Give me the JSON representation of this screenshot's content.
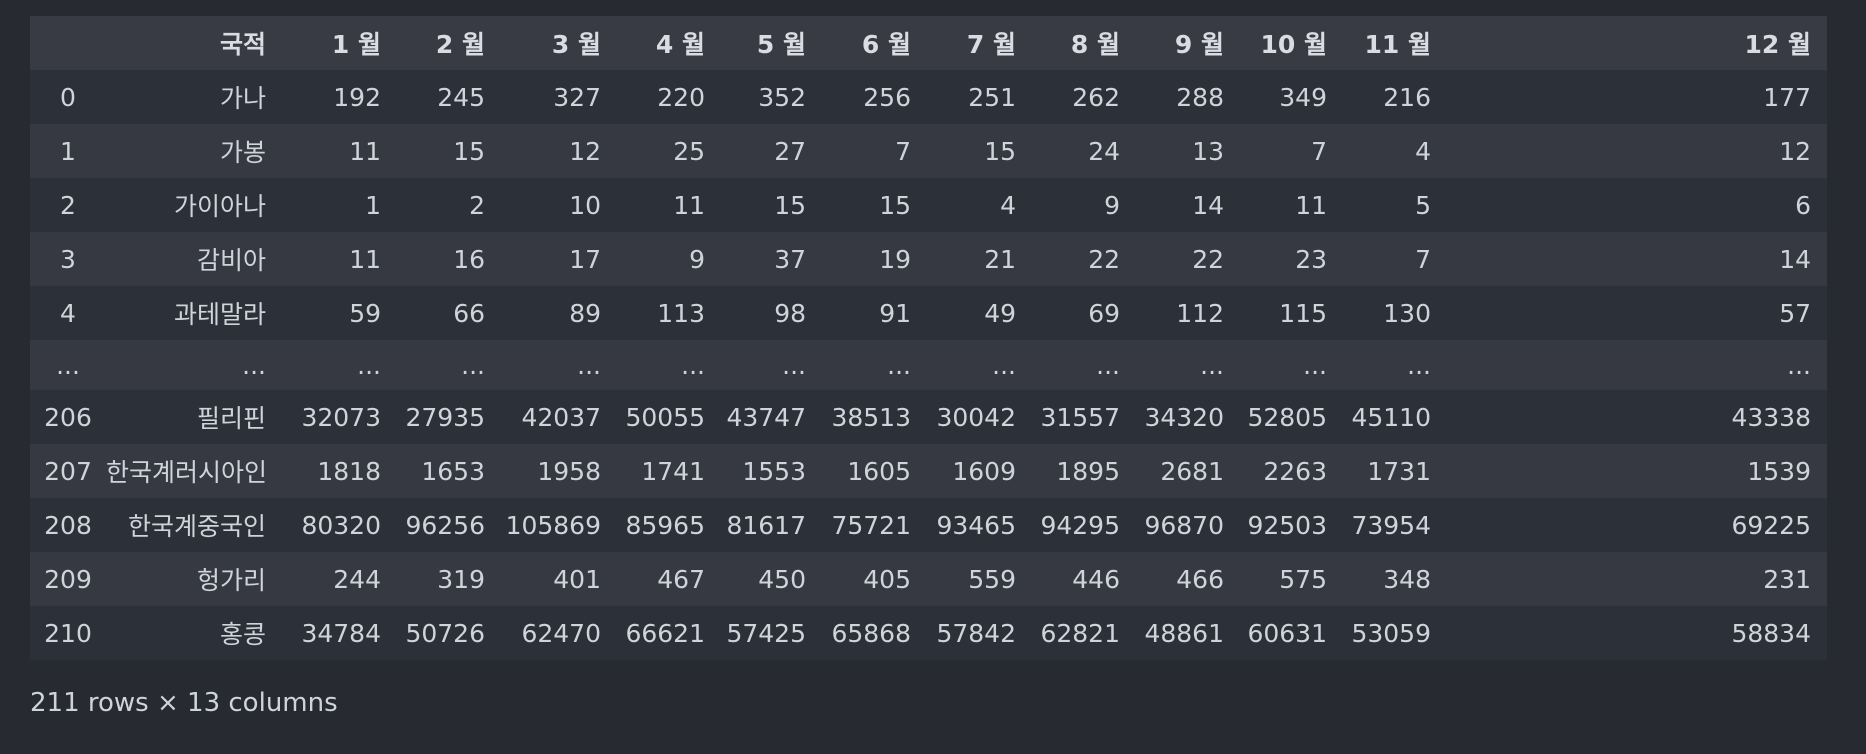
{
  "table": {
    "columns": [
      "",
      "국적",
      "1 월",
      "2 월",
      "3 월",
      "4 월",
      "5 월",
      "6 월",
      "7 월",
      "8 월",
      "9 월",
      "10 월",
      "11 월",
      "12 월"
    ],
    "rows": [
      {
        "index": "0",
        "cells": [
          "가나",
          "192",
          "245",
          "327",
          "220",
          "352",
          "256",
          "251",
          "262",
          "288",
          "349",
          "216",
          "177"
        ]
      },
      {
        "index": "1",
        "cells": [
          "가봉",
          "11",
          "15",
          "12",
          "25",
          "27",
          "7",
          "15",
          "24",
          "13",
          "7",
          "4",
          "12"
        ]
      },
      {
        "index": "2",
        "cells": [
          "가이아나",
          "1",
          "2",
          "10",
          "11",
          "15",
          "15",
          "4",
          "9",
          "14",
          "11",
          "5",
          "6"
        ]
      },
      {
        "index": "3",
        "cells": [
          "감비아",
          "11",
          "16",
          "17",
          "9",
          "37",
          "19",
          "21",
          "22",
          "22",
          "23",
          "7",
          "14"
        ]
      },
      {
        "index": "4",
        "cells": [
          "과테말라",
          "59",
          "66",
          "89",
          "113",
          "98",
          "91",
          "49",
          "69",
          "112",
          "115",
          "130",
          "57"
        ]
      },
      {
        "index": "...",
        "cells": [
          "...",
          "...",
          "...",
          "...",
          "...",
          "...",
          "...",
          "...",
          "...",
          "...",
          "...",
          "...",
          "..."
        ]
      },
      {
        "index": "206",
        "cells": [
          "필리핀",
          "32073",
          "27935",
          "42037",
          "50055",
          "43747",
          "38513",
          "30042",
          "31557",
          "34320",
          "52805",
          "45110",
          "43338"
        ]
      },
      {
        "index": "207",
        "cells": [
          "한국계러시아인",
          "1818",
          "1653",
          "1958",
          "1741",
          "1553",
          "1605",
          "1609",
          "1895",
          "2681",
          "2263",
          "1731",
          "1539"
        ]
      },
      {
        "index": "208",
        "cells": [
          "한국계중국인",
          "80320",
          "96256",
          "105869",
          "85965",
          "81617",
          "75721",
          "93465",
          "94295",
          "96870",
          "92503",
          "73954",
          "69225"
        ]
      },
      {
        "index": "209",
        "cells": [
          "헝가리",
          "244",
          "319",
          "401",
          "467",
          "450",
          "405",
          "559",
          "446",
          "466",
          "575",
          "348",
          "231"
        ]
      },
      {
        "index": "210",
        "cells": [
          "홍콩",
          "34784",
          "50726",
          "62470",
          "66621",
          "57425",
          "65868",
          "57842",
          "62821",
          "48861",
          "60631",
          "53059",
          "58834"
        ]
      }
    ]
  },
  "footer": {
    "shape_text": "211 rows × 13 columns"
  }
}
